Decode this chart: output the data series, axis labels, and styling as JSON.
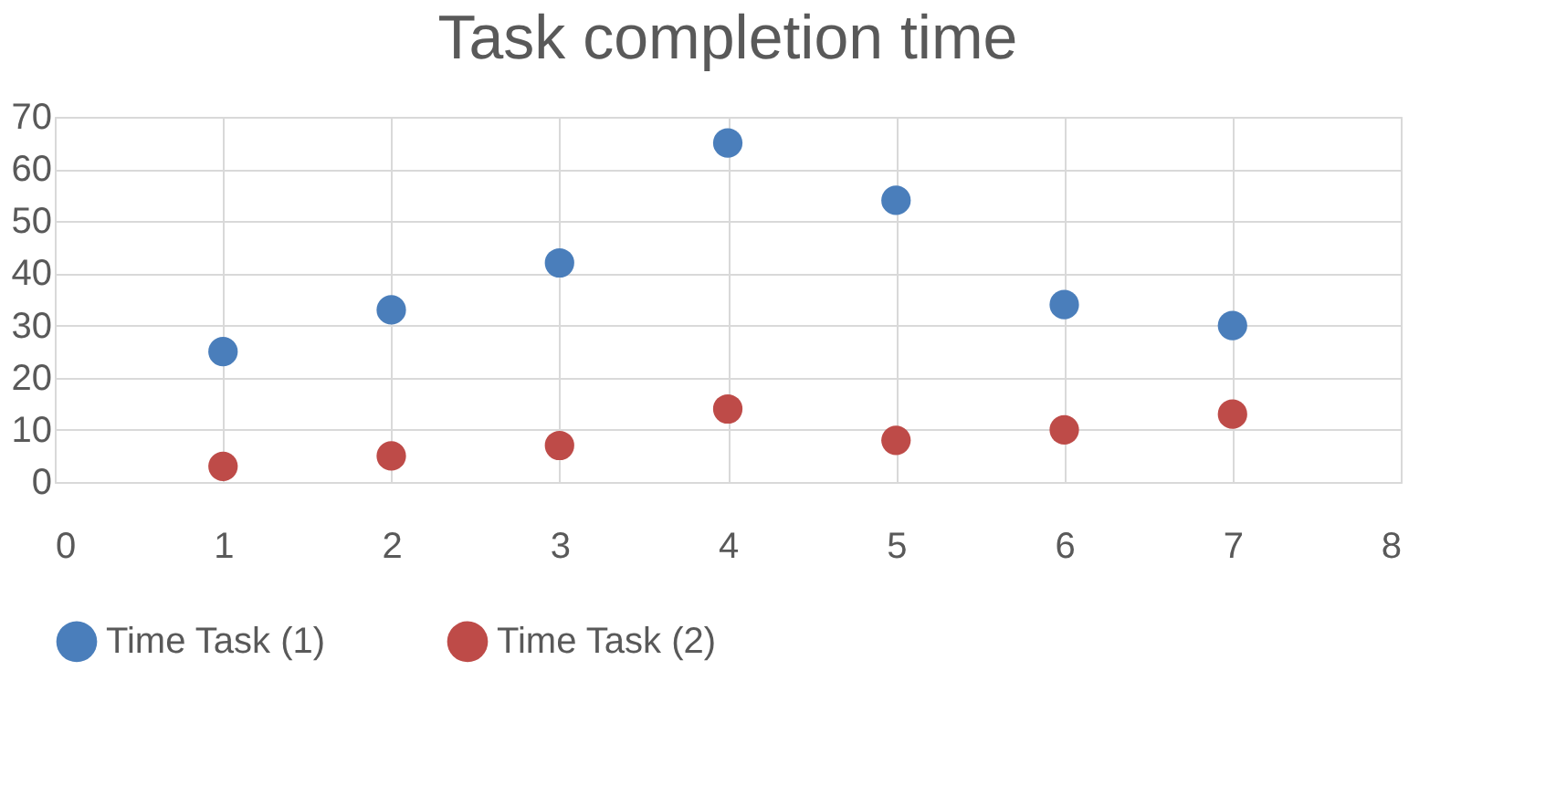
{
  "chart_data": {
    "type": "scatter",
    "title": "Task completion time",
    "x": [
      1,
      2,
      3,
      4,
      5,
      6,
      7
    ],
    "series": [
      {
        "name": "Time Task  (1)",
        "color": "#4a7ebb",
        "values": [
          25,
          33,
          42,
          65,
          54,
          34,
          30
        ]
      },
      {
        "name": "Time Task (2)",
        "color": "#be4b48",
        "values": [
          3,
          5,
          7,
          14,
          8,
          10,
          13
        ]
      }
    ],
    "xlim": [
      0,
      8
    ],
    "xticks": [
      0,
      1,
      2,
      3,
      4,
      5,
      6,
      7,
      8
    ],
    "ylim": [
      0,
      70
    ],
    "yticks": [
      0,
      10,
      20,
      30,
      40,
      50,
      60,
      70
    ],
    "grid": true,
    "legend": "bottom",
    "marker": "circle"
  }
}
